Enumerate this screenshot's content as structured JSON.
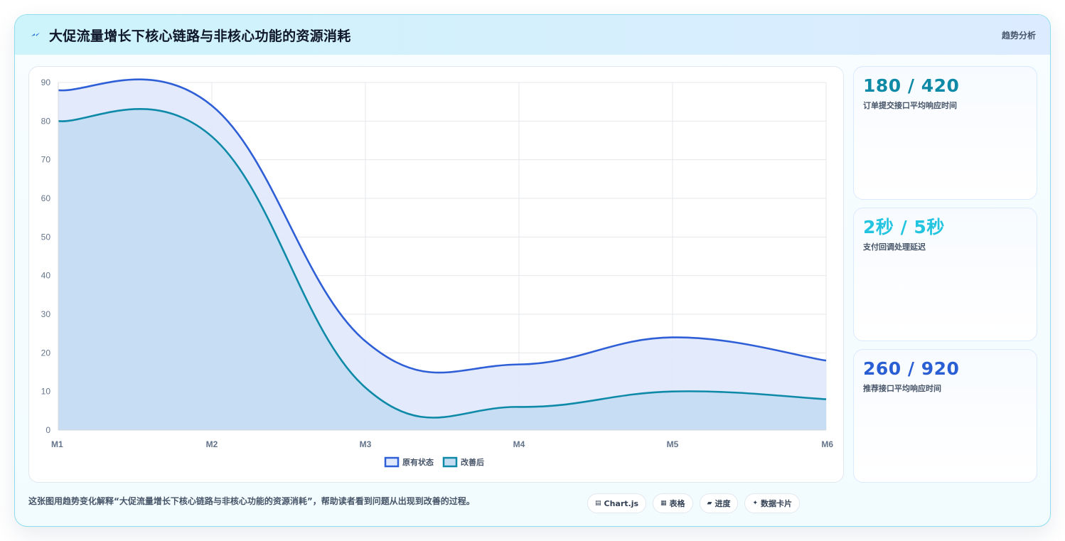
{
  "header": {
    "title": "大促流量增长下核心链路与非核心功能的资源消耗",
    "tag": "趋势分析",
    "icon": "lightning-icon"
  },
  "chart_data": {
    "type": "line",
    "fill": true,
    "categories": [
      "M1",
      "M2",
      "M3",
      "M4",
      "M5",
      "M6"
    ],
    "series": [
      {
        "name": "原有状态",
        "values": [
          88,
          84,
          23,
          17,
          24,
          18
        ],
        "color": "#2f5fd7",
        "fill": "#e0e9fb"
      },
      {
        "name": "改善后",
        "values": [
          80,
          76,
          11,
          6,
          10,
          8
        ],
        "color": "#0e8aa8",
        "fill": "#c4dcf2"
      }
    ],
    "ylim": [
      0,
      90
    ],
    "yticks": [
      "0",
      "10",
      "20",
      "30",
      "40",
      "50",
      "60",
      "70",
      "80",
      "90"
    ],
    "grid": true,
    "legend": "bottom"
  },
  "stats": [
    {
      "value": "180 / 420",
      "label": "订单提交接口平均响应时间",
      "color": "#0f8aa6"
    },
    {
      "value": "2秒 / 5秒",
      "label": "支付回调处理延迟",
      "color": "#22c4e0"
    },
    {
      "value": "260 / 920",
      "label": "推荐接口平均响应时间",
      "color": "#2a5fd4"
    }
  ],
  "footer": {
    "note": "这张图用趋势变化解释“大促流量增长下核心链路与非核心功能的资源消耗”，帮助读者看到问题从出现到改善的过程。",
    "chips": [
      {
        "icon": "▤",
        "label": "Chart.js"
      },
      {
        "icon": "▦",
        "label": "表格"
      },
      {
        "icon": "▰",
        "label": "进度"
      },
      {
        "icon": "✦",
        "label": "数据卡片"
      }
    ]
  }
}
